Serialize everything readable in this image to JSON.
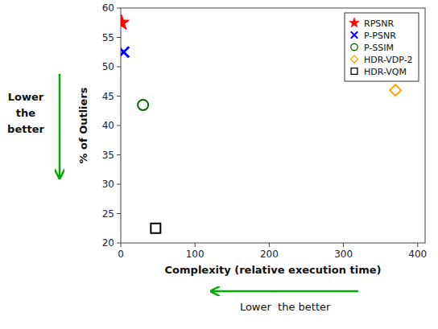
{
  "chart_data": {
    "type": "scatter",
    "xlabel": "Complexity (relative execution time)",
    "ylabel": "% of Outliers",
    "series": [
      {
        "name": "RPSNR",
        "color": "#FF0000",
        "marker": "star",
        "x": [
          1
        ],
        "values": [
          57.5
        ]
      },
      {
        "name": "P-PSNR",
        "color": "#0000FF",
        "marker": "x",
        "x": [
          4
        ],
        "values": [
          52.5
        ]
      },
      {
        "name": "P-SSIM",
        "color": "#006400",
        "marker": "circle-open",
        "x": [
          30
        ],
        "values": [
          43.5
        ]
      },
      {
        "name": "HDR-VDP-2",
        "color": "#FFA500",
        "marker": "diamond-open",
        "x": [
          370
        ],
        "values": [
          46.0
        ]
      },
      {
        "name": "HDR-VQM",
        "color": "#000000",
        "marker": "square-open",
        "x": [
          47
        ],
        "values": [
          22.5
        ]
      }
    ],
    "xlim": [
      0,
      410
    ],
    "ylim": [
      20,
      60
    ],
    "xticks": [
      0,
      100,
      200,
      300,
      400
    ],
    "yticks": [
      20,
      25,
      30,
      35,
      40,
      45,
      50,
      55,
      60
    ],
    "legend": "upper right",
    "grid": false,
    "annotations": [
      {
        "text": [
          "Lower",
          "the",
          "better"
        ],
        "color": "#00AA00"
      },
      {
        "text": "Lower  the better",
        "color": "#00AA00"
      }
    ]
  }
}
